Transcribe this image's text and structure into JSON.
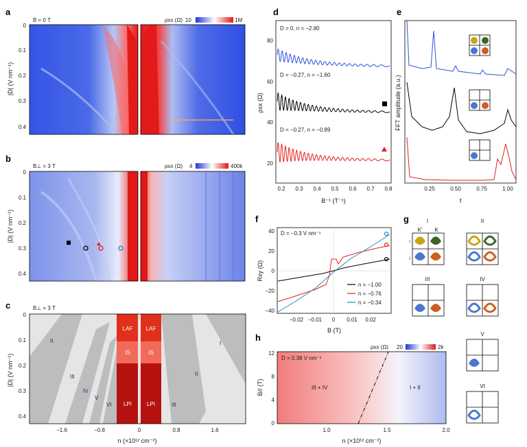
{
  "panels": {
    "a": {
      "label": "a",
      "field": "B = 0 T",
      "colorbar": {
        "label": "ρxx (Ω)",
        "min": "10",
        "max": "1M"
      },
      "ylabel": "|D| (V nm⁻¹)",
      "yticks": [
        "0",
        "0.1",
        "0.2",
        "0.3",
        "0.4"
      ]
    },
    "b": {
      "label": "b",
      "field": "B⊥ = 3 T",
      "colorbar": {
        "label": "ρxx (Ω)",
        "min": "4",
        "max": "400k"
      },
      "ylabel": "|D| (V nm⁻¹)",
      "yticks": [
        "0",
        "0.1",
        "0.2",
        "0.3",
        "0.4"
      ]
    },
    "c": {
      "label": "c",
      "field": "B⊥ = 3 T",
      "ylabel": "|D| (V nm⁻¹)",
      "yticks": [
        "0",
        "0.1",
        "0.2",
        "0.3",
        "0.4"
      ],
      "xticks": [
        "−1.6",
        "−0.8",
        "0",
        "0.8",
        "1.6"
      ],
      "xlabel": "n (×10¹² cm⁻²)",
      "regions": [
        "II",
        "III",
        "IV",
        "V",
        "VI",
        "I",
        "II",
        "III"
      ],
      "phases": [
        "LAF",
        "IS",
        "LPI",
        "LAF",
        "IS",
        "LPI"
      ]
    },
    "d": {
      "label": "d",
      "curves": [
        {
          "name": "D = 0, n = −2.80",
          "color": "#2a4fd8"
        },
        {
          "name": "D = −0.27, n = −1.60",
          "color": "#000000"
        },
        {
          "name": "D = −0.27, n = −0.89",
          "color": "#e0201b"
        }
      ],
      "ylabel": "ρxx (Ω)",
      "yticks": [
        "80",
        "60",
        "40",
        "20"
      ],
      "xticks": [
        "0.2",
        "0.3",
        "0.4",
        "0.5",
        "0.6",
        "0.7",
        "0.8"
      ],
      "xlabel": "B⁻¹ (T⁻¹)"
    },
    "e": {
      "label": "e",
      "ylabel": "FFT amplitude (a.u.)",
      "xticks": [
        "0.25",
        "0.50",
        "0.75",
        "1.00"
      ],
      "xlabel": "f"
    },
    "f": {
      "label": "f",
      "condition": "D = −0.3 V nm⁻¹",
      "ylabel": "Rxy (Ω)",
      "yticks": [
        "40",
        "20",
        "0",
        "−20",
        "−40"
      ],
      "xticks": [
        "−0.02",
        "−0.01",
        "0",
        "0.01",
        "0.02"
      ],
      "xlabel": "B (T)",
      "legend": [
        {
          "name": "n = −1.00",
          "color": "#000000"
        },
        {
          "name": "n = −0.76",
          "color": "#e0201b"
        },
        {
          "name": "n = −0.34",
          "color": "#1f86c9"
        }
      ]
    },
    "g": {
      "label": "g",
      "states": [
        "I",
        "II",
        "III",
        "IV",
        "V",
        "VI"
      ],
      "valley_labels": [
        "K′",
        "K"
      ],
      "spin_labels": [
        "↑",
        "↓"
      ]
    },
    "h": {
      "label": "h",
      "condition": "D = 0.38 V nm⁻¹",
      "colorbar": {
        "label": "ρxx (Ω)",
        "min": "20",
        "max": "2k"
      },
      "ylabel": "B// (T)",
      "yticks": [
        "12",
        "8",
        "4",
        "0"
      ],
      "xticks": [
        "1.0",
        "1.5",
        "2.0"
      ],
      "xlabel": "n (×10¹² cm⁻²)",
      "regions": [
        "III + IV",
        "I + II"
      ]
    }
  },
  "colors": {
    "blue": "#3a55e0",
    "red": "#e3181b",
    "fermi_yellow": "#c9a515",
    "fermi_green": "#3c6527",
    "fermi_blue": "#4a76cf",
    "fermi_orange": "#cf5d1f"
  }
}
